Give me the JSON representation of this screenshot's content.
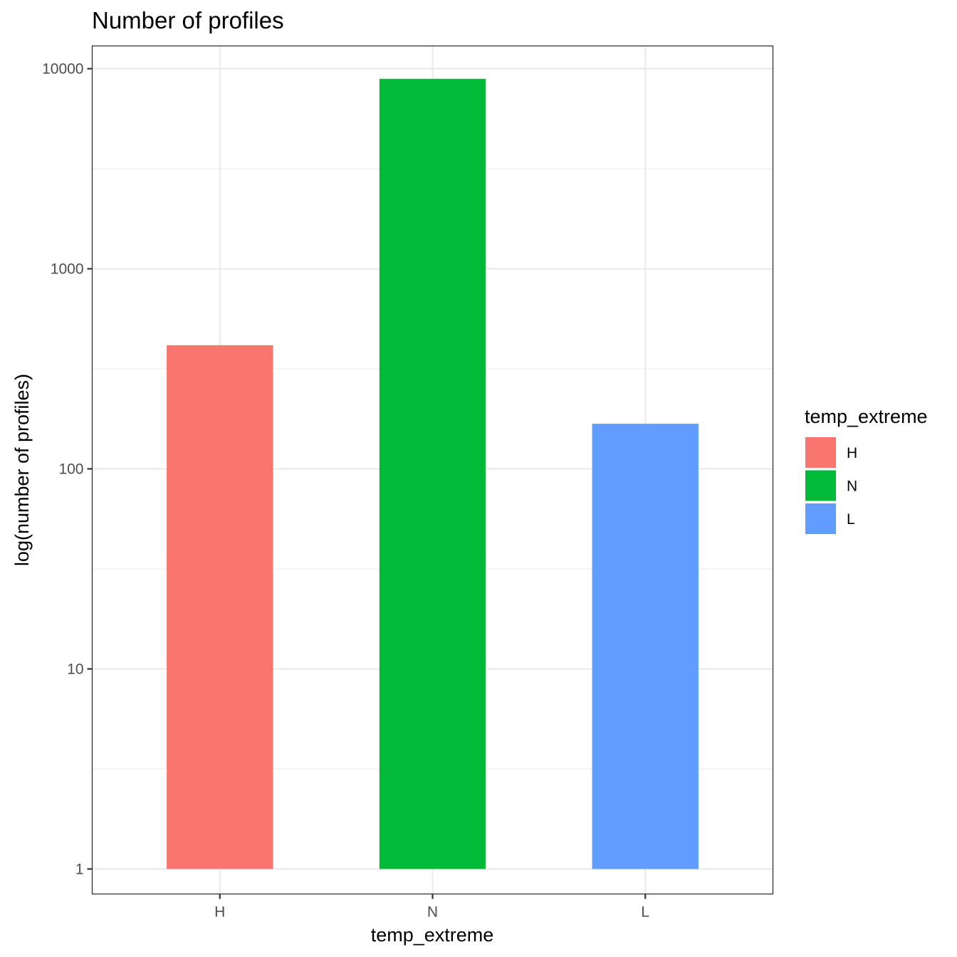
{
  "chart_data": {
    "type": "bar",
    "title": "Number of profiles",
    "xlabel": "temp_extreme",
    "ylabel": "log(number of profiles)",
    "y_scale": "log10",
    "ylim": [
      0.75,
      13000
    ],
    "y_ticks": [
      1,
      10,
      100,
      1000,
      10000
    ],
    "y_tick_labels": [
      "1",
      "10",
      "100",
      "1000",
      "10000"
    ],
    "categories": [
      "H",
      "N",
      "L"
    ],
    "values": [
      415,
      8900,
      168
    ],
    "colors": [
      "#F8766D",
      "#00BA38",
      "#619CFF"
    ],
    "grid": true,
    "legend": {
      "title": "temp_extreme",
      "position": "right",
      "entries": [
        "H",
        "N",
        "L"
      ]
    }
  }
}
